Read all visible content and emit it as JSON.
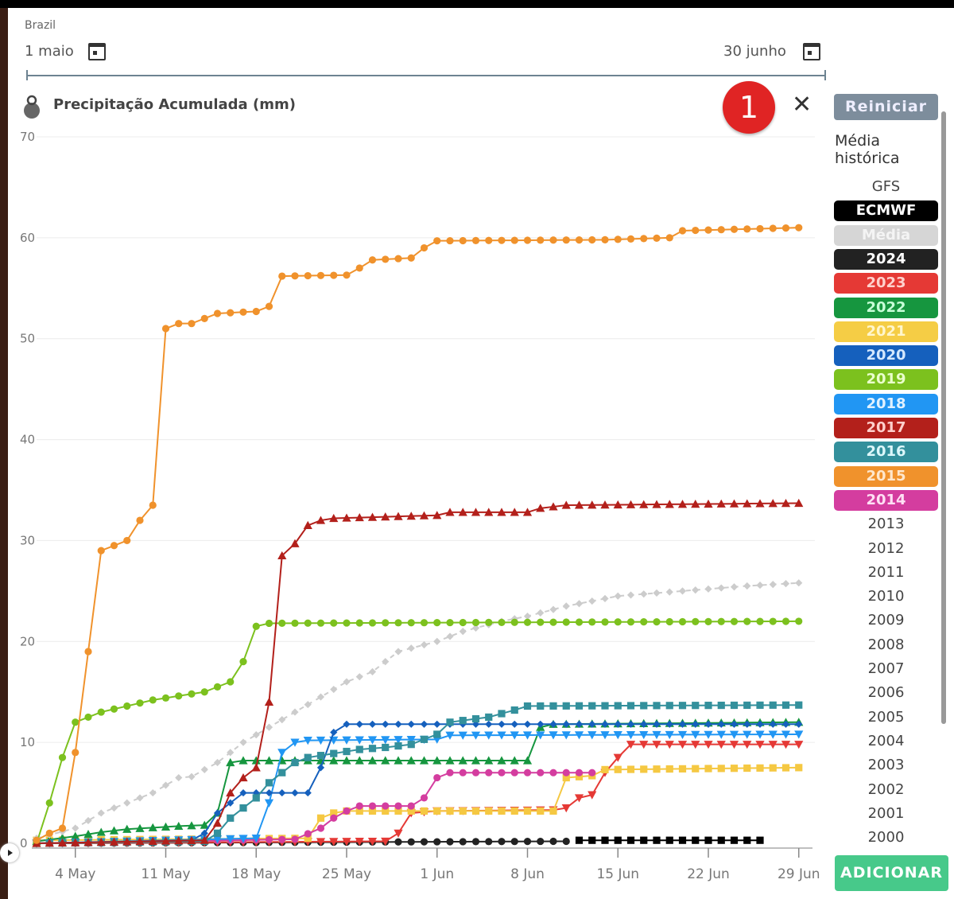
{
  "header": {
    "region": "Brazil",
    "start_date": "1 maio",
    "end_date": "30 junho",
    "notification_count": "1"
  },
  "controls": {
    "reset_label": "Reiniciar",
    "historical_label": "Média histórica",
    "add_label": "ADICIONAR"
  },
  "legend": {
    "active": [
      {
        "label": "ECMWF",
        "bg": "#000000",
        "fg": "#ffffff"
      },
      {
        "label": "Média",
        "bg": "#d6d6d6",
        "fg": "#f4f4f4"
      },
      {
        "label": "2024",
        "bg": "#222222",
        "fg": "#ffffff"
      },
      {
        "label": "2023",
        "bg": "#e53935",
        "fg": "#ffd0cc"
      },
      {
        "label": "2022",
        "bg": "#16963f",
        "fg": "#c8ffd8"
      },
      {
        "label": "2021",
        "bg": "#f5cd45",
        "fg": "#fff6cc"
      },
      {
        "label": "2020",
        "bg": "#1560bd",
        "fg": "#d4e8ff"
      },
      {
        "label": "2019",
        "bg": "#7cc11e",
        "fg": "#eaffcc"
      },
      {
        "label": "2018",
        "bg": "#2196f3",
        "fg": "#e0f1ff"
      },
      {
        "label": "2017",
        "bg": "#b3201b",
        "fg": "#ffd0cc"
      },
      {
        "label": "2016",
        "bg": "#33909c",
        "fg": "#dcf7fa"
      },
      {
        "label": "2015",
        "bg": "#f0922c",
        "fg": "#ffe7cc"
      },
      {
        "label": "2014",
        "bg": "#d43d9f",
        "fg": "#ffe0f4"
      }
    ],
    "inactive_top": [
      "GFS"
    ],
    "inactive": [
      "2013",
      "2012",
      "2011",
      "2010",
      "2009",
      "2008",
      "2007",
      "2006",
      "2005",
      "2004",
      "2003",
      "2002",
      "2001",
      "2000"
    ]
  },
  "chart_data": {
    "type": "line",
    "title": "Precipitação Acumulada (mm)",
    "xlabel": "",
    "ylabel": "",
    "ylim": [
      0,
      70
    ],
    "yticks": [
      "0",
      "10",
      "20",
      "30",
      "40",
      "50",
      "60",
      "70"
    ],
    "xticks": [
      "4 May",
      "11 May",
      "18 May",
      "25 May",
      "1 Jun",
      "8 Jun",
      "15 Jun",
      "22 Jun",
      "29 Jun"
    ],
    "xrange": [
      "05-01",
      "06-30"
    ],
    "grid": true,
    "series": [
      {
        "name": "2024",
        "color": "#222222",
        "marker": "circle",
        "points": [
          [
            "05-01",
            0
          ],
          [
            "06-11",
            0.2
          ]
        ]
      },
      {
        "name": "ECMWF",
        "color": "#000000",
        "marker": "square",
        "points": [
          [
            "06-12",
            0.3
          ],
          [
            "06-26",
            0.3
          ]
        ]
      },
      {
        "name": "2023",
        "color": "#e53935",
        "marker": "triangle-down",
        "points": [
          [
            "05-01",
            0
          ],
          [
            "05-28",
            0.2
          ],
          [
            "05-29",
            1
          ],
          [
            "05-30",
            3
          ],
          [
            "06-01",
            3.2
          ],
          [
            "06-10",
            3.3
          ],
          [
            "06-11",
            3.5
          ],
          [
            "06-12",
            4.5
          ],
          [
            "06-13",
            4.8
          ],
          [
            "06-14",
            7
          ],
          [
            "06-15",
            8.5
          ],
          [
            "06-16",
            9.8
          ],
          [
            "06-29",
            9.8
          ]
        ]
      },
      {
        "name": "2021",
        "color": "#f5c842",
        "marker": "square",
        "points": [
          [
            "05-01",
            0.3
          ],
          [
            "05-22",
            0.5
          ],
          [
            "05-23",
            2.5
          ],
          [
            "05-24",
            3
          ],
          [
            "05-25",
            3.2
          ],
          [
            "06-10",
            3.2
          ],
          [
            "06-11",
            6.5
          ],
          [
            "06-13",
            6.7
          ],
          [
            "06-14",
            7.3
          ],
          [
            "06-29",
            7.5
          ]
        ]
      },
      {
        "name": "2014",
        "color": "#d43d9f",
        "marker": "circle",
        "points": [
          [
            "05-01",
            0
          ],
          [
            "05-21",
            0.4
          ],
          [
            "05-23",
            1.5
          ],
          [
            "05-24",
            2.5
          ],
          [
            "05-25",
            3.2
          ],
          [
            "05-26",
            3.7
          ],
          [
            "05-30",
            3.7
          ],
          [
            "05-31",
            4.5
          ],
          [
            "06-01",
            6.5
          ],
          [
            "06-02",
            7
          ],
          [
            "06-13",
            7
          ]
        ]
      },
      {
        "name": "2022",
        "color": "#16963f",
        "marker": "triangle",
        "points": [
          [
            "05-01",
            0.2
          ],
          [
            "05-04",
            0.7
          ],
          [
            "05-06",
            1.1
          ],
          [
            "05-08",
            1.4
          ],
          [
            "05-12",
            1.7
          ],
          [
            "05-14",
            1.8
          ],
          [
            "05-15",
            3
          ],
          [
            "05-16",
            8
          ],
          [
            "05-17",
            8.2
          ],
          [
            "06-08",
            8.2
          ],
          [
            "06-09",
            11.5
          ],
          [
            "06-10",
            11.8
          ],
          [
            "06-29",
            12
          ]
        ]
      },
      {
        "name": "2018",
        "color": "#2196f3",
        "marker": "triangle-down",
        "points": [
          [
            "05-01",
            0
          ],
          [
            "05-18",
            0.5
          ],
          [
            "05-19",
            4
          ],
          [
            "05-20",
            9
          ],
          [
            "05-21",
            10
          ],
          [
            "05-22",
            10.2
          ],
          [
            "06-01",
            10.3
          ],
          [
            "06-02",
            10.7
          ],
          [
            "06-29",
            10.8
          ]
        ]
      },
      {
        "name": "2020",
        "color": "#1560bd",
        "marker": "diamond",
        "points": [
          [
            "05-01",
            0
          ],
          [
            "05-13",
            0.3
          ],
          [
            "05-14",
            1
          ],
          [
            "05-15",
            3
          ],
          [
            "05-16",
            4
          ],
          [
            "05-17",
            5
          ],
          [
            "05-22",
            5
          ],
          [
            "05-23",
            7.5
          ],
          [
            "05-24",
            11
          ],
          [
            "05-25",
            11.8
          ],
          [
            "06-29",
            11.8
          ]
        ]
      },
      {
        "name": "2016",
        "color": "#33909c",
        "marker": "square",
        "points": [
          [
            "05-01",
            0
          ],
          [
            "05-14",
            0.2
          ],
          [
            "05-15",
            1
          ],
          [
            "05-16",
            2.5
          ],
          [
            "05-17",
            3.5
          ],
          [
            "05-18",
            4.5
          ],
          [
            "05-19",
            6
          ],
          [
            "05-20",
            7
          ],
          [
            "05-21",
            8
          ],
          [
            "05-22",
            8.5
          ],
          [
            "05-26",
            9.3
          ],
          [
            "05-28",
            9.5
          ],
          [
            "05-30",
            9.8
          ],
          [
            "06-01",
            10.8
          ],
          [
            "06-02",
            12
          ],
          [
            "06-05",
            12.5
          ],
          [
            "06-07",
            13.2
          ],
          [
            "06-08",
            13.6
          ],
          [
            "06-29",
            13.7
          ]
        ]
      },
      {
        "name": "Média",
        "color": "#cccccc",
        "marker": "diamond",
        "dashed": true,
        "points": [
          [
            "05-01",
            0.5
          ],
          [
            "05-04",
            1.5
          ],
          [
            "05-06",
            3
          ],
          [
            "05-08",
            4
          ],
          [
            "05-10",
            5
          ],
          [
            "05-12",
            6.5
          ],
          [
            "05-13",
            6.6
          ],
          [
            "05-15",
            8
          ],
          [
            "05-17",
            10
          ],
          [
            "05-19",
            11.5
          ],
          [
            "05-21",
            13
          ],
          [
            "05-23",
            14.5
          ],
          [
            "05-25",
            16
          ],
          [
            "05-27",
            17
          ],
          [
            "05-29",
            19
          ],
          [
            "06-01",
            20
          ],
          [
            "06-03",
            21
          ],
          [
            "06-06",
            22
          ],
          [
            "06-08",
            22.5
          ],
          [
            "06-11",
            23.5
          ],
          [
            "06-15",
            24.5
          ],
          [
            "06-20",
            25
          ],
          [
            "06-25",
            25.5
          ],
          [
            "06-29",
            25.8
          ]
        ]
      },
      {
        "name": "2019",
        "color": "#7cc11e",
        "marker": "circle",
        "points": [
          [
            "05-01",
            0
          ],
          [
            "05-02",
            4
          ],
          [
            "05-03",
            8.5
          ],
          [
            "05-04",
            12
          ],
          [
            "05-05",
            12.5
          ],
          [
            "05-06",
            13
          ],
          [
            "05-08",
            13.6
          ],
          [
            "05-10",
            14.2
          ],
          [
            "05-12",
            14.6
          ],
          [
            "05-14",
            15
          ],
          [
            "05-15",
            15.5
          ],
          [
            "05-16",
            16
          ],
          [
            "05-17",
            18
          ],
          [
            "05-18",
            21.5
          ],
          [
            "05-19",
            21.8
          ],
          [
            "06-29",
            22
          ]
        ]
      },
      {
        "name": "2017",
        "color": "#b3201b",
        "marker": "triangle",
        "points": [
          [
            "05-01",
            0
          ],
          [
            "05-14",
            0.3
          ],
          [
            "05-15",
            2
          ],
          [
            "05-16",
            5
          ],
          [
            "05-17",
            6.5
          ],
          [
            "05-18",
            7.5
          ],
          [
            "05-19",
            14
          ],
          [
            "05-20",
            28.5
          ],
          [
            "05-21",
            29.7
          ],
          [
            "05-22",
            31.5
          ],
          [
            "05-23",
            32
          ],
          [
            "05-24",
            32.2
          ],
          [
            "06-01",
            32.5
          ],
          [
            "06-02",
            32.8
          ],
          [
            "06-08",
            32.8
          ],
          [
            "06-09",
            33.2
          ],
          [
            "06-11",
            33.5
          ],
          [
            "06-29",
            33.7
          ]
        ]
      },
      {
        "name": "2015",
        "color": "#f0922c",
        "marker": "circle",
        "points": [
          [
            "05-01",
            0.3
          ],
          [
            "05-02",
            1
          ],
          [
            "05-03",
            1.5
          ],
          [
            "05-04",
            9
          ],
          [
            "05-05",
            19
          ],
          [
            "05-06",
            29
          ],
          [
            "05-07",
            29.5
          ],
          [
            "05-08",
            30
          ],
          [
            "05-09",
            32
          ],
          [
            "05-10",
            33.5
          ],
          [
            "05-11",
            51
          ],
          [
            "05-12",
            51.5
          ],
          [
            "05-13",
            51.5
          ],
          [
            "05-14",
            52
          ],
          [
            "05-15",
            52.5
          ],
          [
            "05-18",
            52.7
          ],
          [
            "05-19",
            53.2
          ],
          [
            "05-20",
            56.2
          ],
          [
            "05-25",
            56.3
          ],
          [
            "05-26",
            57
          ],
          [
            "05-27",
            57.8
          ],
          [
            "05-30",
            58
          ],
          [
            "05-31",
            59
          ],
          [
            "06-01",
            59.7
          ],
          [
            "06-14",
            59.8
          ],
          [
            "06-19",
            60
          ],
          [
            "06-20",
            60.7
          ],
          [
            "06-29",
            61
          ]
        ]
      }
    ]
  }
}
